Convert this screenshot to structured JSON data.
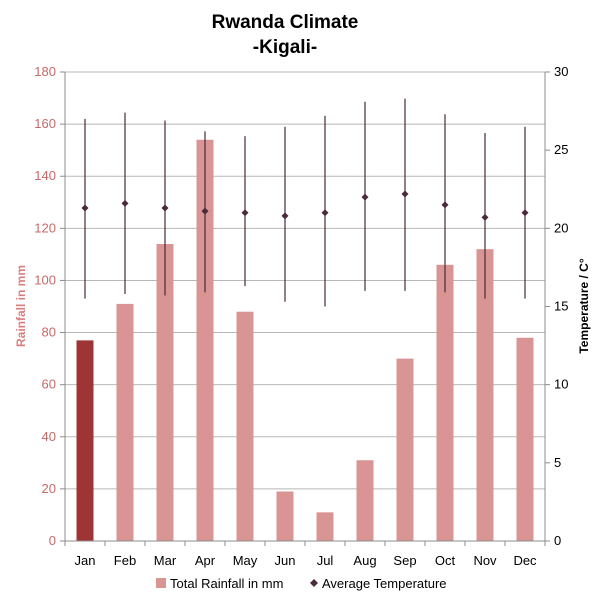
{
  "chart_data": {
    "type": "bar",
    "title": "Rwanda Climate",
    "subtitle": "-Kigali-",
    "categories": [
      "Jan",
      "Feb",
      "Mar",
      "Apr",
      "May",
      "Jun",
      "Jul",
      "Aug",
      "Sep",
      "Oct",
      "Nov",
      "Dec"
    ],
    "ylabel": "Rainfall in mm",
    "y2label": "Temperature / C°",
    "ylim": [
      0,
      180
    ],
    "y2lim": [
      0,
      30
    ],
    "yticks": [
      "0",
      "20",
      "40",
      "60",
      "80",
      "100",
      "120",
      "140",
      "160",
      "180"
    ],
    "y2ticks": [
      "0",
      "5",
      "10",
      "15",
      "20",
      "25",
      "30"
    ],
    "grid": true,
    "legend_position": "bottom",
    "series": [
      {
        "name": "Total Rainfall in mm",
        "kind": "bar",
        "color": "#d99494",
        "highlight_color": "#9e3434",
        "highlight_index": 0,
        "values": [
          77,
          91,
          114,
          154,
          88,
          19,
          11,
          31,
          70,
          106,
          112,
          78
        ]
      },
      {
        "name": "Average Temperature",
        "kind": "point-range",
        "axis": "right",
        "color": "#4a2a3c",
        "values": [
          21.3,
          21.6,
          21.3,
          21.1,
          21.0,
          20.8,
          21.0,
          22.0,
          22.2,
          21.5,
          20.7,
          21.0
        ],
        "high": [
          27.0,
          27.4,
          26.9,
          26.2,
          25.9,
          26.5,
          27.2,
          28.1,
          28.3,
          27.3,
          26.1,
          26.5
        ],
        "low": [
          15.5,
          15.8,
          15.7,
          15.9,
          16.3,
          15.3,
          15.0,
          16.0,
          16.0,
          15.9,
          15.5,
          15.5
        ]
      }
    ]
  }
}
